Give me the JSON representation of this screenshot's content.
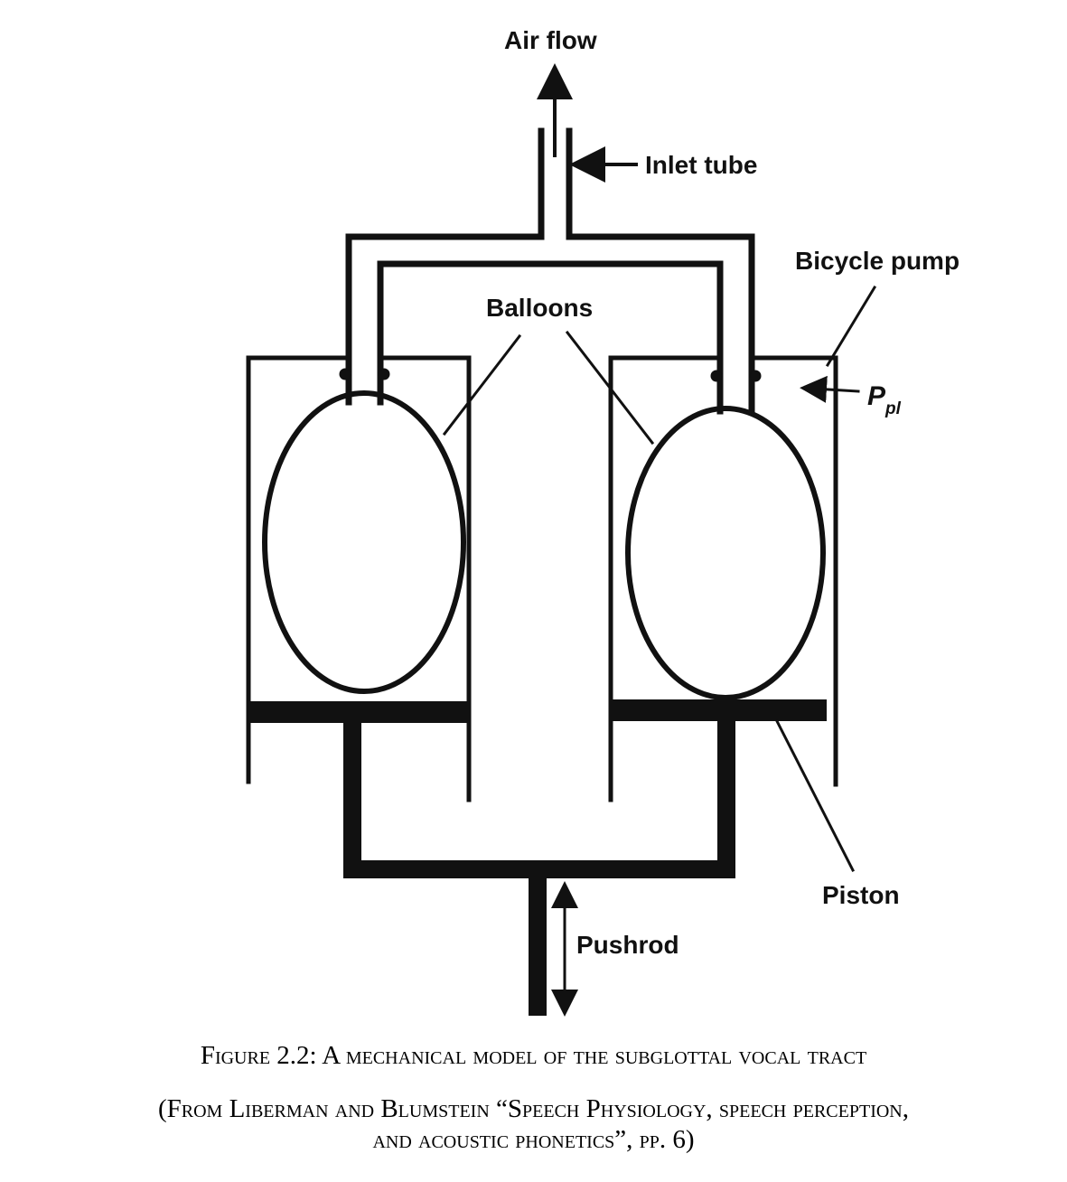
{
  "labels": {
    "air_flow": "Air flow",
    "inlet_tube": "Inlet tube",
    "bicycle_pump": "Bicycle pump",
    "balloons": "Balloons",
    "ppl_main": "P",
    "ppl_sub": "pl",
    "piston": "Piston",
    "pushrod": "Pushrod"
  },
  "caption": {
    "title": "Figure 2.2: A mechanical model of the subglottal vocal tract",
    "source_line1": "(From Liberman and Blumstein “Speech Physiology, speech perception,",
    "source_line2": "and acoustic phonetics”, pp.  6)"
  },
  "colors": {
    "ink": "#111111",
    "background": "#ffffff"
  }
}
